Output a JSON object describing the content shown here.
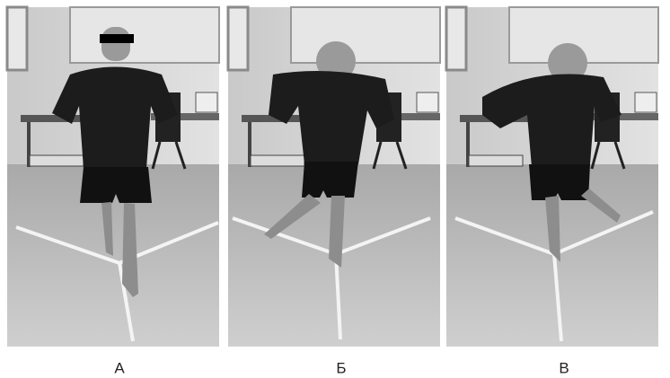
{
  "panels": [
    {
      "label": "A"
    },
    {
      "label": "Б"
    },
    {
      "label": "В"
    }
  ]
}
